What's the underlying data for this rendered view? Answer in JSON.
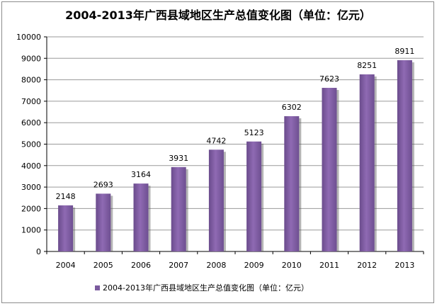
{
  "chart_data": {
    "type": "bar",
    "title": "2004-2013年广西县域地区生产总值变化图（单位：亿元）",
    "categories": [
      "2004",
      "2005",
      "2006",
      "2007",
      "2008",
      "2009",
      "2010",
      "2011",
      "2012",
      "2013"
    ],
    "series": [
      {
        "name": "2004-2013年广西县域地区生产总值变化图（单位：亿元）",
        "values": [
          2148,
          2693,
          3164,
          3931,
          4742,
          5123,
          6302,
          7623,
          8251,
          8911
        ],
        "color": "#7b5a9e"
      }
    ],
    "ylim": [
      0,
      10000
    ],
    "yticks": [
      "0",
      "1000",
      "2000",
      "3000",
      "4000",
      "5000",
      "6000",
      "7000",
      "8000",
      "9000",
      "10000"
    ],
    "data_labels": [
      "2148",
      "2693",
      "3164",
      "3931",
      "4742",
      "5123",
      "6302",
      "7623",
      "8251",
      "8911"
    ],
    "grid": true,
    "legend_position": "bottom"
  }
}
